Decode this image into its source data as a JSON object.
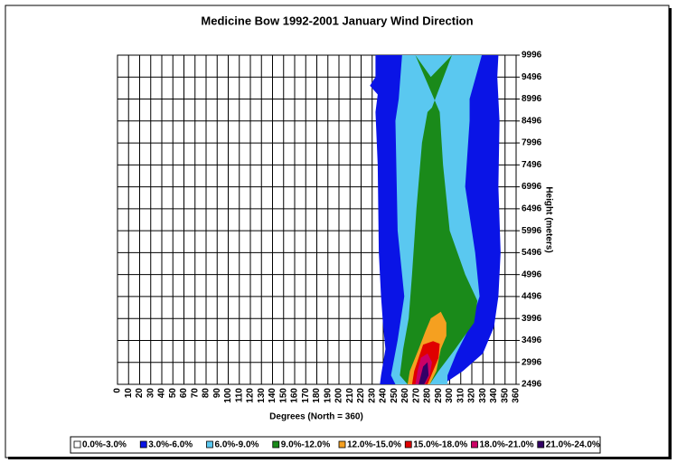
{
  "chart_data": {
    "type": "contour",
    "title": "Medicine Bow 1992-2001 January Wind Direction",
    "x_label": "Degrees (North = 360)",
    "y_label": "Height (meters)",
    "xlim": [
      0,
      360
    ],
    "xticks": [
      0,
      10,
      20,
      30,
      40,
      50,
      60,
      70,
      80,
      90,
      100,
      110,
      120,
      130,
      140,
      150,
      160,
      170,
      180,
      190,
      200,
      210,
      220,
      230,
      240,
      250,
      260,
      270,
      280,
      290,
      300,
      310,
      320,
      330,
      340,
      350,
      360
    ],
    "ylim": [
      2496,
      9996
    ],
    "yticks": [
      2496,
      2996,
      3496,
      3996,
      4496,
      4996,
      5496,
      5996,
      6496,
      6996,
      7496,
      7996,
      8496,
      8996,
      9496,
      9996
    ],
    "grid": true,
    "series": [
      {
        "name": "0.0%-3.0%",
        "color": "#ffffff",
        "x": [],
        "y": []
      },
      {
        "name": "3.0%-6.0%",
        "color": "#0a14e6",
        "x": [
          233,
          233,
          228,
          235,
          233,
          235,
          236,
          238,
          240,
          242,
          238,
          237,
          294,
          312,
          330,
          340,
          344,
          346,
          344,
          345,
          343,
          344
        ],
        "y": [
          9996,
          9500,
          9300,
          9100,
          8700,
          7500,
          5500,
          4500,
          3800,
          3300,
          2700,
          2496,
          2496,
          2800,
          3200,
          3800,
          4500,
          5500,
          7000,
          8500,
          9500,
          9996
        ]
      },
      {
        "name": "6.0%-9.0%",
        "color": "#5ac8f0",
        "x": [
          257,
          254,
          251,
          253,
          259,
          253,
          247,
          251,
          298,
          298,
          306,
          318,
          327,
          323,
          314,
          318,
          318,
          329
        ],
        "y": [
          9996,
          9000,
          8500,
          6000,
          4500,
          3500,
          2700,
          2496,
          2496,
          2700,
          3200,
          3800,
          4500,
          5500,
          7000,
          8500,
          9000,
          9996
        ]
      },
      {
        "name": "9.0%-12.0%",
        "color": "#1a8a1a",
        "x": [
          284,
          280,
          275,
          270,
          266,
          263,
          258,
          255,
          262,
          282,
          290,
          305,
          322,
          325,
          314,
          300,
          294,
          291,
          269,
          283,
          302
        ],
        "y": [
          8800,
          8700,
          8000,
          6500,
          5000,
          4000,
          3300,
          2700,
          2496,
          2496,
          2800,
          3300,
          3900,
          4400,
          5000,
          6000,
          7500,
          8700,
          9996,
          9500,
          9996
        ]
      },
      {
        "name": "12.0%-15.0%",
        "color": "#f5a020",
        "x": [
          283,
          292,
          297,
          297,
          292,
          288,
          282,
          262,
          264,
          272,
          278
        ],
        "y": [
          4000,
          4150,
          3900,
          3600,
          3300,
          2800,
          2496,
          2496,
          2800,
          3300,
          3700
        ]
      },
      {
        "name": "15.0%-18.0%",
        "color": "#e00000",
        "x": [
          276,
          285,
          291,
          290,
          285,
          280,
          266,
          268,
          272
        ],
        "y": [
          3400,
          3480,
          3420,
          3100,
          2800,
          2496,
          2496,
          2800,
          3100
        ]
      },
      {
        "name": "18.0%-21.0%",
        "color": "#cc0066",
        "x": [
          274,
          280,
          284,
          282,
          278,
          269,
          271
        ],
        "y": [
          3100,
          3200,
          3000,
          2700,
          2496,
          2496,
          2800
        ]
      },
      {
        "name": "21.0%-24.0%",
        "color": "#330066",
        "x": [
          276,
          280,
          281,
          277,
          272,
          274
        ],
        "y": [
          2900,
          3000,
          2700,
          2496,
          2496,
          2700
        ]
      }
    ]
  }
}
